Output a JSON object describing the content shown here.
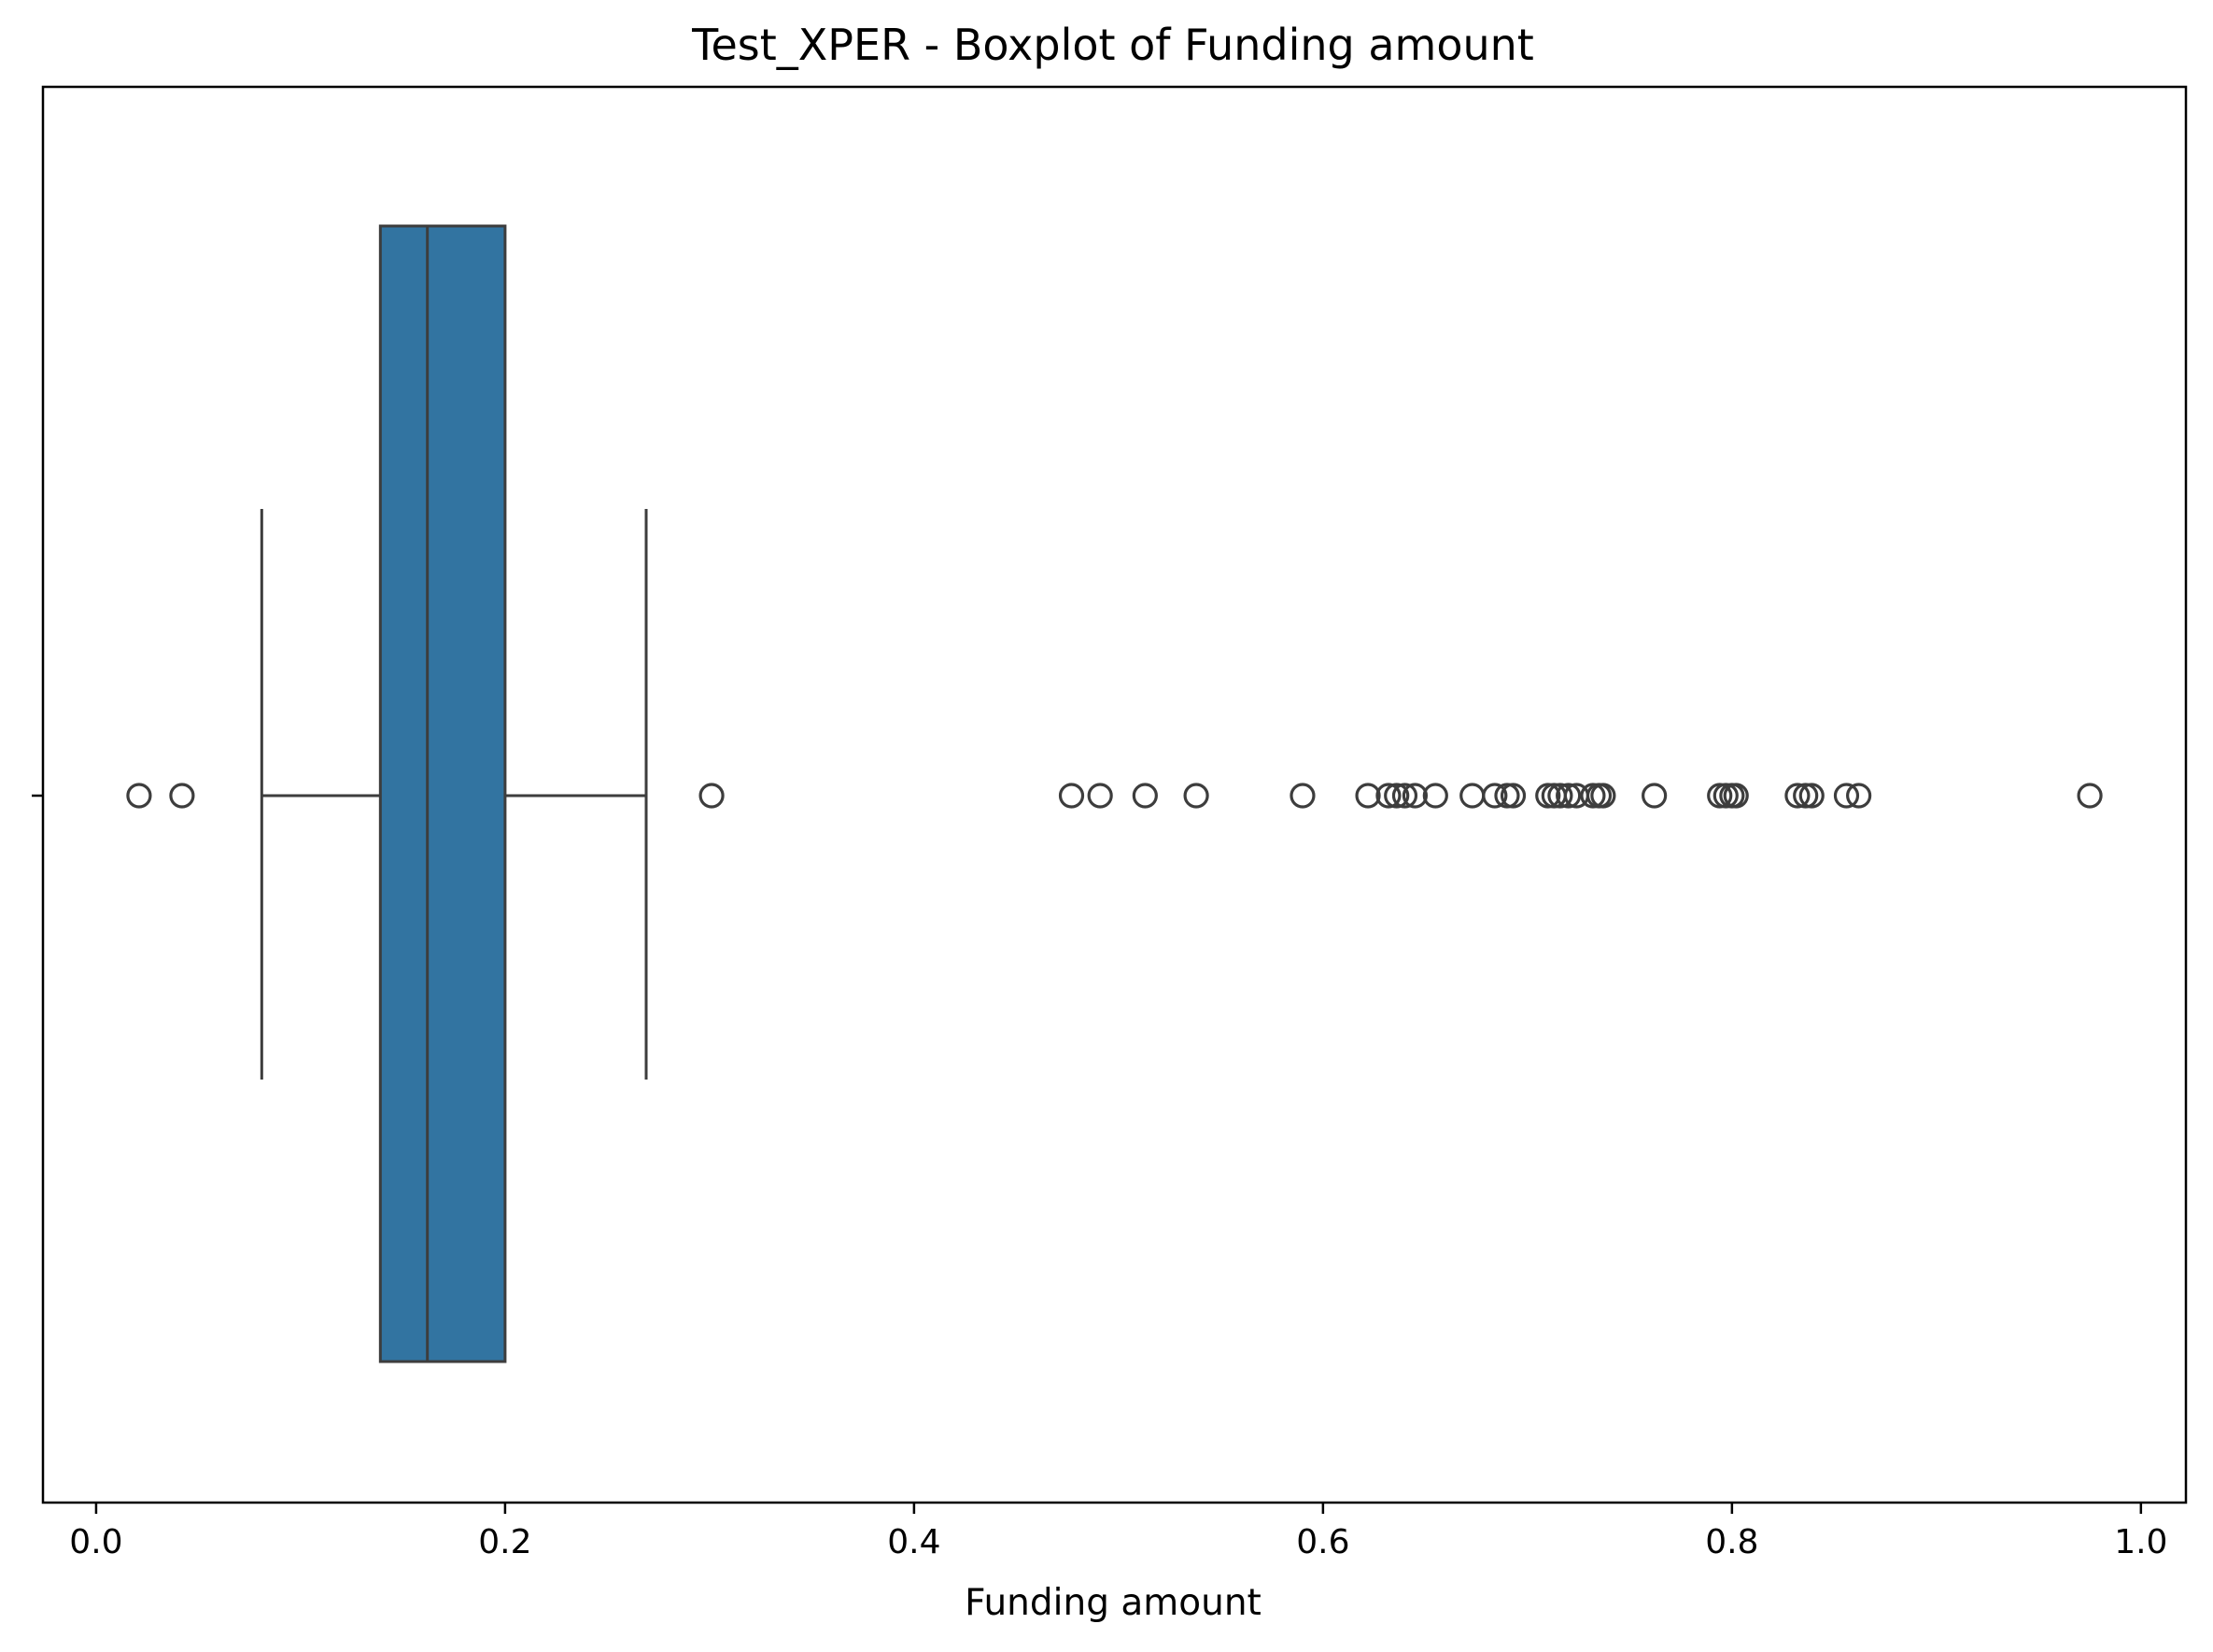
{
  "chart_data": {
    "type": "boxplot",
    "title": "Test_XPER - Boxplot of Funding amount",
    "xlabel": "Funding amount",
    "ylabel": "",
    "xlim": [
      -0.026,
      1.022
    ],
    "xticks": [
      0.0,
      0.2,
      0.4,
      0.6,
      0.8,
      1.0
    ],
    "xtick_labels": [
      "0.0",
      "0.2",
      "0.4",
      "0.6",
      "0.8",
      "1.0"
    ],
    "grid": false,
    "box": {
      "whisker_low": 0.081,
      "q1": 0.139,
      "median": 0.162,
      "q3": 0.2,
      "whisker_high": 0.269,
      "color": "#3274a1"
    },
    "outliers": [
      0.021,
      0.042,
      0.301,
      0.477,
      0.491,
      0.513,
      0.538,
      0.59,
      0.622,
      0.632,
      0.636,
      0.64,
      0.645,
      0.655,
      0.673,
      0.684,
      0.69,
      0.693,
      0.71,
      0.713,
      0.716,
      0.72,
      0.724,
      0.732,
      0.735,
      0.737,
      0.762,
      0.794,
      0.797,
      0.8,
      0.802,
      0.832,
      0.836,
      0.839,
      0.856,
      0.862,
      0.975
    ],
    "colors": {
      "box": "#3274a1",
      "line": "#3d3d3d",
      "axis": "#000000"
    }
  }
}
